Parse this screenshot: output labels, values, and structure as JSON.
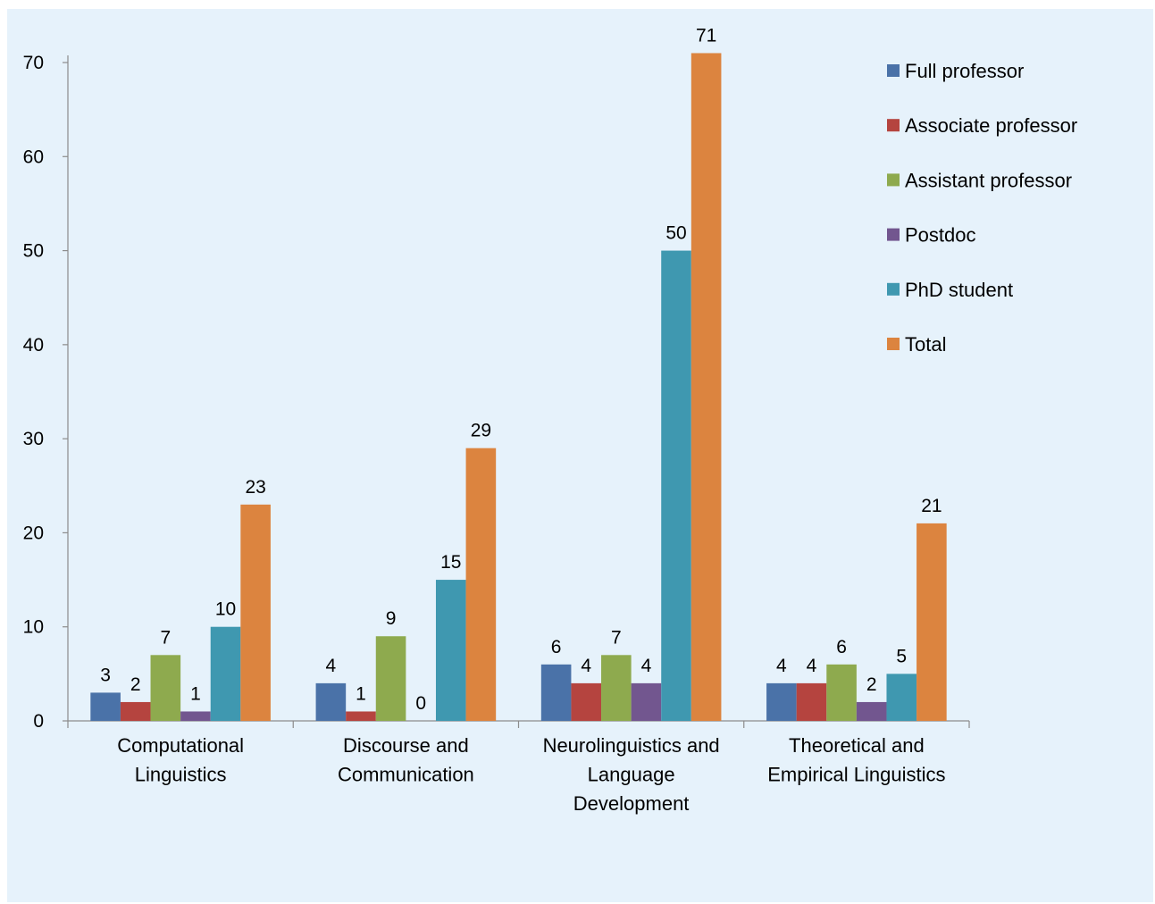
{
  "chart_data": {
    "type": "bar",
    "categories": [
      [
        "Computational",
        "Linguistics"
      ],
      [
        "Discourse and",
        "Communication"
      ],
      [
        "Neurolinguistics and",
        "Language",
        "Development"
      ],
      [
        "Theoretical and",
        "Empirical Linguistics"
      ]
    ],
    "series": [
      {
        "name": "Full professor",
        "color": "#4a72a8",
        "values": [
          3,
          4,
          6,
          4
        ]
      },
      {
        "name": "Associate professor",
        "color": "#b5443f",
        "values": [
          2,
          1,
          4,
          4
        ]
      },
      {
        "name": "Assistant professor",
        "color": "#8eaa4e",
        "values": [
          7,
          9,
          7,
          6
        ]
      },
      {
        "name": "Postdoc",
        "color": "#72568f",
        "values": [
          1,
          0,
          4,
          2
        ]
      },
      {
        "name": "PhD student",
        "color": "#3f98b0",
        "values": [
          10,
          15,
          50,
          5
        ]
      },
      {
        "name": "Total",
        "color": "#dc843f",
        "values": [
          23,
          29,
          71,
          21
        ]
      }
    ],
    "ylim": [
      0,
      70
    ],
    "yticks": [
      0,
      10,
      20,
      30,
      40,
      50,
      60,
      70
    ],
    "legend_position": "right",
    "grid": false,
    "background": "#e6f2fb"
  }
}
